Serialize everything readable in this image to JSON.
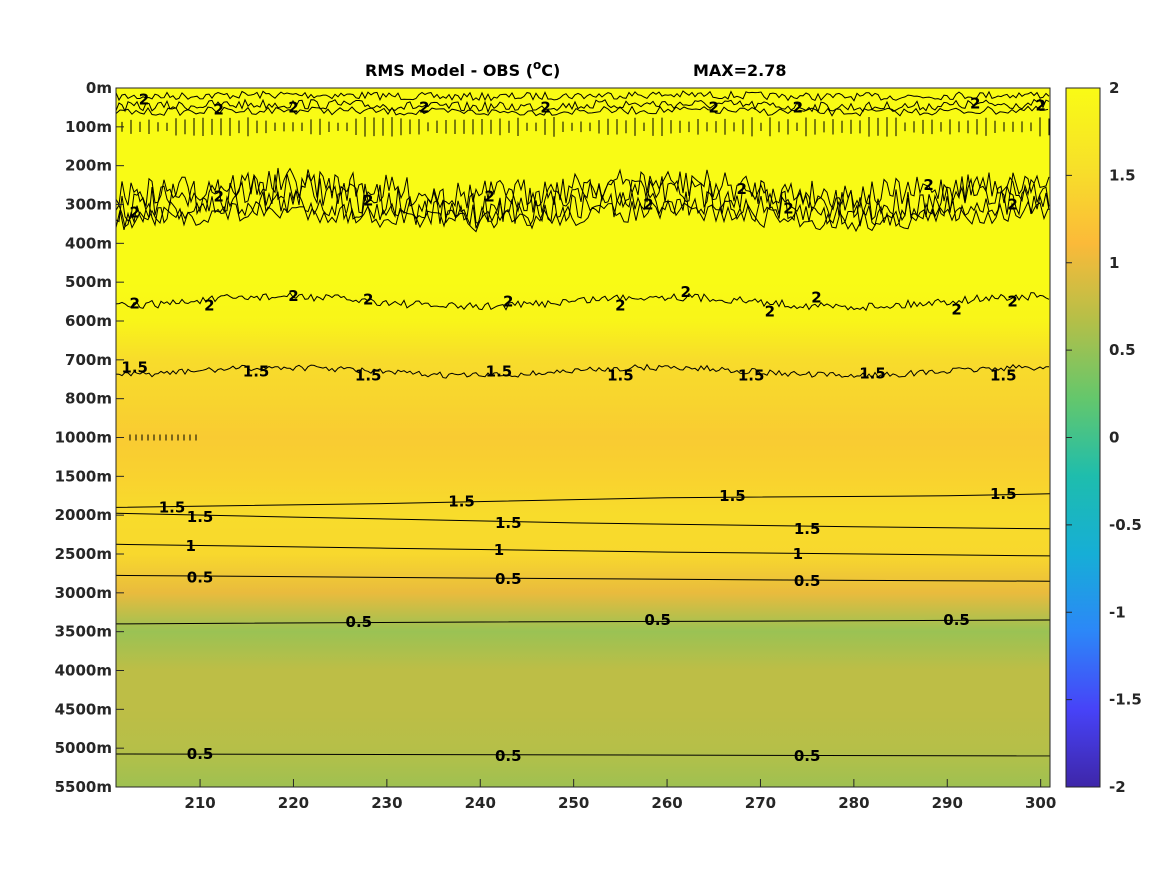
{
  "chart_data": {
    "type": "heatmap",
    "title_main": "RMS Model - OBS (",
    "title_unit_sup": "o",
    "title_unit_tail": "C)",
    "max_label": "MAX=2.78",
    "xlim": [
      201,
      301
    ],
    "x_ticks": [
      "210",
      "220",
      "230",
      "240",
      "250",
      "260",
      "270",
      "280",
      "290",
      "300"
    ],
    "x_tick_values": [
      210,
      220,
      230,
      240,
      250,
      260,
      270,
      280,
      290,
      300
    ],
    "y_ticks": [
      "0m",
      "100m",
      "200m",
      "300m",
      "400m",
      "500m",
      "600m",
      "700m",
      "800m",
      "1000m",
      "1500m",
      "2000m",
      "2500m",
      "3000m",
      "3500m",
      "4000m",
      "4500m",
      "5000m",
      "5500m"
    ],
    "colorbar": {
      "clim": [
        -2,
        2
      ],
      "ticks": [
        "2",
        "1.5",
        "1",
        "0.5",
        "0",
        "-0.5",
        "-1",
        "-1.5",
        "-2"
      ],
      "tick_values": [
        2,
        1.5,
        1,
        0.5,
        0,
        -0.5,
        -1,
        -1.5,
        -2
      ],
      "colormap": [
        "#3e26a8",
        "#4743f8",
        "#2c87f8",
        "#16aed6",
        "#1ebdad",
        "#64c76c",
        "#b4bf48",
        "#fbba39",
        "#f7e129",
        "#f9fb15"
      ]
    },
    "depth_profile": [
      {
        "level": 0,
        "value": 2.0
      },
      {
        "level": 1,
        "value": 2.0
      },
      {
        "level": 2,
        "value": 2.0
      },
      {
        "level": 3,
        "value": 2.0
      },
      {
        "level": 4,
        "value": 2.0
      },
      {
        "level": 5,
        "value": 2.0
      },
      {
        "level": 6,
        "value": 1.9
      },
      {
        "level": 7,
        "value": 1.5
      },
      {
        "level": 8,
        "value": 1.42
      },
      {
        "level": 9,
        "value": 1.3
      },
      {
        "level": 10,
        "value": 1.38
      },
      {
        "level": 11,
        "value": 1.5
      },
      {
        "level": 12,
        "value": 1.45
      },
      {
        "level": 13,
        "value": 1.0
      },
      {
        "level": 14,
        "value": 0.52
      },
      {
        "level": 15,
        "value": 0.72
      },
      {
        "level": 16,
        "value": 0.72
      },
      {
        "level": 17,
        "value": 0.68
      },
      {
        "level": 18,
        "value": 0.55
      }
    ],
    "contour_labels": [
      {
        "text": "2",
        "x": 204,
        "level": 0.3
      },
      {
        "text": "2",
        "x": 212,
        "level": 0.55
      },
      {
        "text": "2",
        "x": 220,
        "level": 0.5
      },
      {
        "text": "2",
        "x": 234,
        "level": 0.5
      },
      {
        "text": "2",
        "x": 247,
        "level": 0.5
      },
      {
        "text": "2",
        "x": 265,
        "level": 0.5
      },
      {
        "text": "2",
        "x": 274,
        "level": 0.5
      },
      {
        "text": "2",
        "x": 293,
        "level": 0.4
      },
      {
        "text": "2",
        "x": 300,
        "level": 0.45
      },
      {
        "text": "2",
        "x": 203,
        "level": 3.2
      },
      {
        "text": "2",
        "x": 212,
        "level": 2.8
      },
      {
        "text": "2",
        "x": 228,
        "level": 2.9
      },
      {
        "text": "2",
        "x": 241,
        "level": 2.8
      },
      {
        "text": "2",
        "x": 258,
        "level": 3.0
      },
      {
        "text": "2",
        "x": 268,
        "level": 2.6
      },
      {
        "text": "2",
        "x": 273,
        "level": 3.1
      },
      {
        "text": "2",
        "x": 288,
        "level": 2.5
      },
      {
        "text": "2",
        "x": 297,
        "level": 3.0
      },
      {
        "text": "2",
        "x": 203,
        "level": 5.55
      },
      {
        "text": "2",
        "x": 211,
        "level": 5.6
      },
      {
        "text": "2",
        "x": 220,
        "level": 5.35
      },
      {
        "text": "2",
        "x": 228,
        "level": 5.45
      },
      {
        "text": "2",
        "x": 243,
        "level": 5.5
      },
      {
        "text": "2",
        "x": 255,
        "level": 5.6
      },
      {
        "text": "2",
        "x": 262,
        "level": 5.25
      },
      {
        "text": "2",
        "x": 271,
        "level": 5.75
      },
      {
        "text": "2",
        "x": 276,
        "level": 5.4
      },
      {
        "text": "2",
        "x": 291,
        "level": 5.7
      },
      {
        "text": "2",
        "x": 297,
        "level": 5.5
      },
      {
        "text": "1.5",
        "x": 203,
        "level": 7.2
      },
      {
        "text": "1.5",
        "x": 216,
        "level": 7.3
      },
      {
        "text": "1.5",
        "x": 228,
        "level": 7.4
      },
      {
        "text": "1.5",
        "x": 242,
        "level": 7.3
      },
      {
        "text": "1.5",
        "x": 255,
        "level": 7.4
      },
      {
        "text": "1.5",
        "x": 269,
        "level": 7.4
      },
      {
        "text": "1.5",
        "x": 282,
        "level": 7.35
      },
      {
        "text": "1.5",
        "x": 296,
        "level": 7.4
      },
      {
        "text": "1.5",
        "x": 207,
        "level": 10.8
      },
      {
        "text": "1.5",
        "x": 238,
        "level": 10.65
      },
      {
        "text": "1.5",
        "x": 267,
        "level": 10.5
      },
      {
        "text": "1.5",
        "x": 296,
        "level": 10.45
      },
      {
        "text": "1.5",
        "x": 210,
        "level": 11.05
      },
      {
        "text": "1.5",
        "x": 243,
        "level": 11.2
      },
      {
        "text": "1.5",
        "x": 275,
        "level": 11.35
      },
      {
        "text": "1",
        "x": 209,
        "level": 11.8
      },
      {
        "text": "1",
        "x": 242,
        "level": 11.9
      },
      {
        "text": "1",
        "x": 274,
        "level": 12.0
      },
      {
        "text": "0.5",
        "x": 210,
        "level": 12.6
      },
      {
        "text": "0.5",
        "x": 243,
        "level": 12.65
      },
      {
        "text": "0.5",
        "x": 275,
        "level": 12.7
      },
      {
        "text": "0.5",
        "x": 227,
        "level": 13.75
      },
      {
        "text": "0.5",
        "x": 259,
        "level": 13.7
      },
      {
        "text": "0.5",
        "x": 291,
        "level": 13.7
      },
      {
        "text": "0.5",
        "x": 210,
        "level": 17.15
      },
      {
        "text": "0.5",
        "x": 243,
        "level": 17.2
      },
      {
        "text": "0.5",
        "x": 275,
        "level": 17.2
      }
    ],
    "contour_lines": [
      {
        "value": "1.5",
        "points": [
          [
            201,
            10.8
          ],
          [
            230,
            10.7
          ],
          [
            260,
            10.55
          ],
          [
            290,
            10.5
          ],
          [
            301,
            10.45
          ]
        ]
      },
      {
        "value": "1.5",
        "points": [
          [
            201,
            10.95
          ],
          [
            220,
            11.05
          ],
          [
            250,
            11.2
          ],
          [
            280,
            11.3
          ],
          [
            301,
            11.35
          ]
        ]
      },
      {
        "value": "1",
        "points": [
          [
            201,
            11.75
          ],
          [
            230,
            11.85
          ],
          [
            260,
            11.95
          ],
          [
            301,
            12.05
          ]
        ]
      },
      {
        "value": "0.5",
        "points": [
          [
            201,
            12.55
          ],
          [
            240,
            12.62
          ],
          [
            280,
            12.68
          ],
          [
            301,
            12.7
          ]
        ]
      },
      {
        "value": "0.5",
        "points": [
          [
            201,
            13.8
          ],
          [
            240,
            13.75
          ],
          [
            280,
            13.72
          ],
          [
            301,
            13.7
          ]
        ]
      },
      {
        "value": "0.5",
        "points": [
          [
            201,
            17.15
          ],
          [
            301,
            17.2
          ]
        ]
      }
    ]
  }
}
